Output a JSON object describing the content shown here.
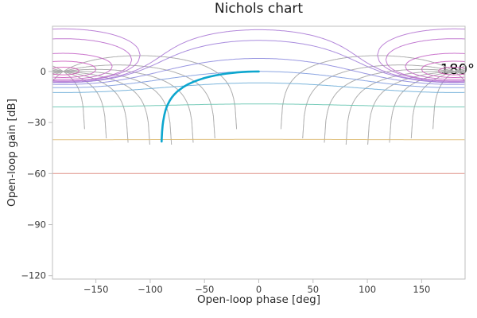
{
  "chart_data": {
    "type": "line",
    "title": "Nichols chart",
    "xlabel": "Open-loop phase [deg]",
    "ylabel": "Open-loop gain [dB]",
    "xlim": [
      -190,
      190
    ],
    "ylim": [
      -122,
      26.6
    ],
    "xticks": [
      -150,
      -100,
      -50,
      0,
      50,
      100,
      150
    ],
    "xtick_labels": [
      "−150",
      "−100",
      "−50",
      "0",
      "50",
      "100",
      "150"
    ],
    "yticks": [
      0,
      -30,
      -60,
      -90,
      -120
    ],
    "ytick_labels": [
      "0",
      "−30",
      "−60",
      "−90",
      "−120"
    ],
    "legend": "none",
    "grid": "nichols",
    "nichols_grid": {
      "description": "constant closed-loop magnitude (M) and phase (N) loci",
      "mag_loci": [
        {
          "db": -60,
          "color": "#d97d72"
        },
        {
          "db": -40,
          "color": "#dcb96f"
        },
        {
          "db": -20,
          "color": "#5fc2ad"
        },
        {
          "db": -10,
          "color": "#64a8d6"
        },
        {
          "db": -6,
          "color": "#7795dd"
        },
        {
          "db": -3,
          "color": "#8886dd"
        },
        {
          "db": -1,
          "color": "#9a79d8"
        },
        {
          "db": -0.5,
          "color": "#a673d3"
        },
        {
          "db": 0.5,
          "color": "#b06ccf"
        },
        {
          "db": 1,
          "color": "#b966ca"
        },
        {
          "db": 3,
          "color": "#c25ec4"
        },
        {
          "db": 6,
          "color": "#ca57bc"
        },
        {
          "db": 12,
          "color": "#d150b2"
        }
      ],
      "phase_loci_deg": [
        -160,
        -140,
        -120,
        -100,
        -80,
        -60,
        -40,
        -20,
        20,
        40,
        60,
        80,
        100,
        120,
        140,
        160
      ],
      "phase_loci_color": "#ababab"
    },
    "series": [
      {
        "name": "open-loop-response",
        "color": "#0da6ce",
        "points": [
          [
            0,
            0
          ],
          [
            -5,
            -0.03
          ],
          [
            -10,
            -0.13
          ],
          [
            -15,
            -0.3
          ],
          [
            -20,
            -0.54
          ],
          [
            -25,
            -0.86
          ],
          [
            -30,
            -1.25
          ],
          [
            -35,
            -1.74
          ],
          [
            -40,
            -2.32
          ],
          [
            -45,
            -3.01
          ],
          [
            -50,
            -3.84
          ],
          [
            -55,
            -4.83
          ],
          [
            -60,
            -6.02
          ],
          [
            -65,
            -7.48
          ],
          [
            -70,
            -9.32
          ],
          [
            -75,
            -11.74
          ],
          [
            -78,
            -13.64
          ],
          [
            -80,
            -15.21
          ],
          [
            -82,
            -17.13
          ],
          [
            -84,
            -19.61
          ],
          [
            -85,
            -21.19
          ],
          [
            -86,
            -23.13
          ],
          [
            -87,
            -25.61
          ],
          [
            -88,
            -29.14
          ],
          [
            -88.5,
            -31.64
          ],
          [
            -89,
            -35.16
          ],
          [
            -89.4,
            -39.6
          ],
          [
            -89.5,
            -41.2
          ]
        ]
      }
    ],
    "annotations": [
      {
        "text": "180°",
        "x_deg": 180,
        "y_db": 0
      }
    ]
  },
  "style": {
    "frame_color": "#bfbfbf",
    "tick_label_color": "#3a3a3a"
  }
}
